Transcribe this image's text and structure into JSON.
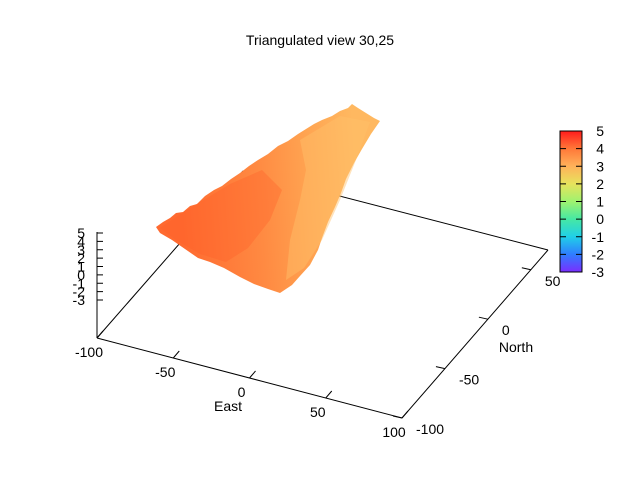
{
  "chart_data": {
    "type": "surface",
    "title": "Triangulated view 30,25",
    "xlabel": "East",
    "ylabel": "North",
    "zlabel": "",
    "view": {
      "rot_x": 30,
      "rot_z": 25
    },
    "x_axis": {
      "range": [
        -100,
        100
      ],
      "ticks": [
        "-100",
        "-50",
        "0",
        "50",
        "100"
      ]
    },
    "y_axis": {
      "range": [
        -100,
        50
      ],
      "ticks": [
        "-100",
        "-50",
        "0",
        "50"
      ]
    },
    "z_axis": {
      "range": [
        -3,
        5
      ],
      "ticks": [
        "-3",
        "-2",
        "-1",
        "0",
        "1",
        "2",
        "3",
        "4",
        "5"
      ]
    },
    "colorbar": {
      "range": [
        -3,
        5
      ],
      "ticks": [
        "-3",
        "-2",
        "-1",
        "0",
        "1",
        "2",
        "3",
        "4",
        "5"
      ],
      "palette": "rainbow",
      "colors": [
        "#7a2eff",
        "#2f7dff",
        "#20d0e8",
        "#46e8a4",
        "#9ff26f",
        "#e7e35c",
        "#ffb25a",
        "#ff7838",
        "#ff1c1c"
      ]
    },
    "surface_value_range": [
      2.8,
      4.0
    ],
    "surface_colors": {
      "high": "#ff6a30",
      "low": "#ffb35e"
    },
    "grid": false,
    "legend": "none"
  }
}
